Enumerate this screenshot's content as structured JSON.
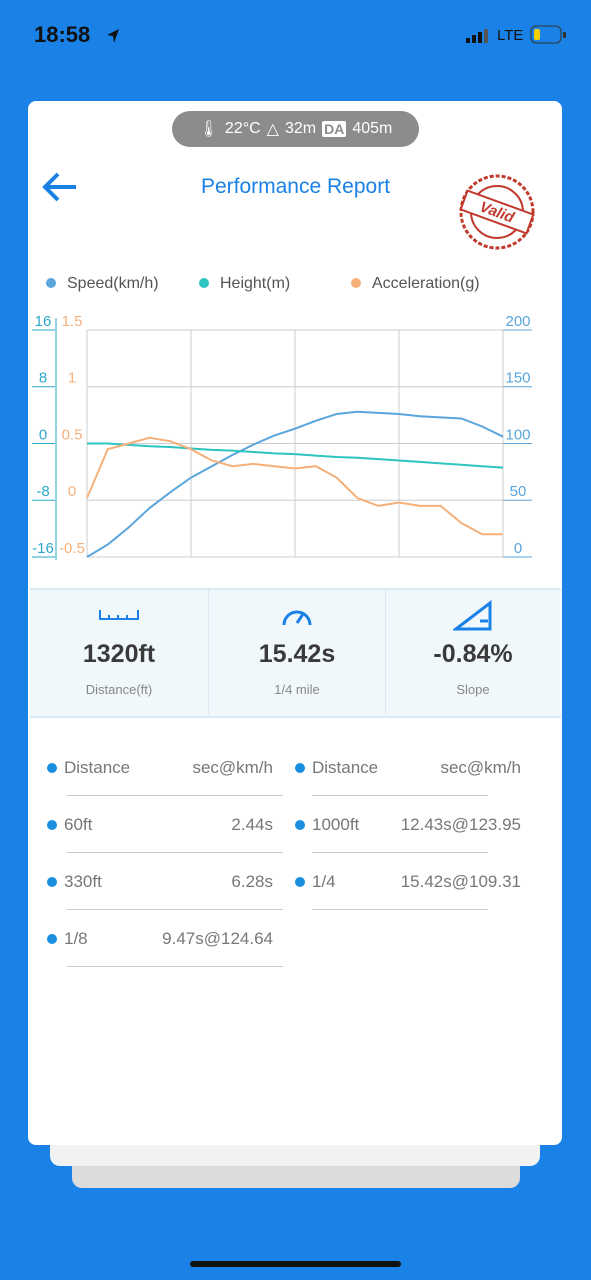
{
  "status": {
    "time": "18:58",
    "network": "LTE"
  },
  "conditions": {
    "temperature": "22°C",
    "altitude": "32m",
    "da_label": "DA",
    "density_altitude": "405m"
  },
  "header": {
    "title": "Performance Report",
    "stamp": "Valid"
  },
  "chart_data": {
    "type": "line",
    "series": [
      {
        "name": "Speed(km/h)",
        "color": "#5aa5dc",
        "axis": "y2",
        "values": [
          0,
          11,
          26,
          43,
          57,
          70,
          80,
          90,
          99,
          107,
          113,
          120,
          126,
          128,
          127,
          126,
          124,
          123,
          122,
          115,
          106
        ]
      },
      {
        "name": "Height(m)",
        "color": "#2ec4c0",
        "values": [
          0,
          0,
          -0.2,
          -0.4,
          -0.5,
          -0.7,
          -0.9,
          -1.0,
          -1.2,
          -1.4,
          -1.5,
          -1.7,
          -1.9,
          -2.0,
          -2.2,
          -2.4,
          -2.6,
          -2.8,
          -3.0,
          -3.2,
          -3.4
        ]
      },
      {
        "name": "Acceleration(g)",
        "color": "#f5b07a",
        "axis": "y3",
        "values": [
          0.02,
          0.45,
          0.5,
          0.55,
          0.52,
          0.45,
          0.35,
          0.3,
          0.32,
          0.3,
          0.28,
          0.3,
          0.2,
          0.02,
          -0.05,
          -0.02,
          -0.05,
          -0.05,
          -0.2,
          -0.3,
          -0.3
        ]
      }
    ],
    "ylim": [
      -16,
      16
    ],
    "yticks": [
      -16,
      -8,
      0,
      8,
      16
    ],
    "y2lim": [
      0,
      200
    ],
    "y2ticks": [
      0,
      50,
      100,
      150,
      200
    ],
    "y3lim": [
      -0.5,
      1.5
    ],
    "y3ticks": [
      -0.5,
      0,
      0.5,
      1,
      1.5
    ],
    "grid": true
  },
  "stats": [
    {
      "value": "1320ft",
      "label": "Distance(ft)"
    },
    {
      "value": "15.42s",
      "label": "1/4 mile"
    },
    {
      "value": "-0.84%",
      "label": "Slope"
    }
  ],
  "table": {
    "left": [
      [
        "Distance",
        "sec@km/h"
      ],
      [
        "60ft",
        "2.44s"
      ],
      [
        "330ft",
        "6.28s"
      ],
      [
        "1/8",
        "9.47s@124.64"
      ]
    ],
    "right": [
      [
        "Distance",
        "sec@km/h"
      ],
      [
        "1000ft",
        "12.43s@123.95"
      ],
      [
        "1/4",
        "15.42s@109.31"
      ]
    ]
  }
}
